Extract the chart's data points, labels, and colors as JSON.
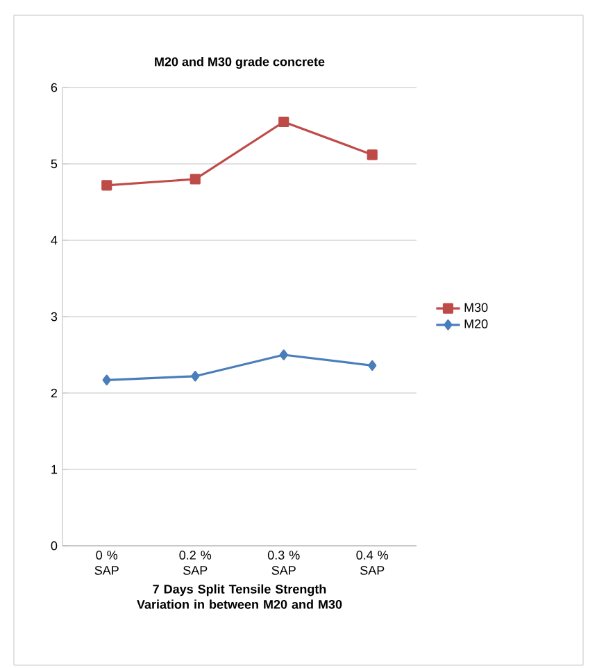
{
  "chart_data": {
    "type": "line",
    "title": "M20 and M30 grade concrete",
    "xlabel": "7 Days Split Tensile Strength Variation in between M20 and M30",
    "categories": [
      "0 % SAP",
      "0.2 % SAP",
      "0.3 % SAP",
      "0.4 % SAP"
    ],
    "series": [
      {
        "name": "M30",
        "color": "#be4b48",
        "marker": "square",
        "values": [
          4.72,
          4.8,
          5.55,
          5.12
        ]
      },
      {
        "name": "M20",
        "color": "#4a7ebb",
        "marker": "diamond",
        "values": [
          2.17,
          2.22,
          2.5,
          2.36
        ]
      }
    ],
    "ylim": [
      0,
      6
    ],
    "yticks": [
      0,
      1,
      2,
      3,
      4,
      5,
      6
    ],
    "grid": "y",
    "legend": "right"
  }
}
